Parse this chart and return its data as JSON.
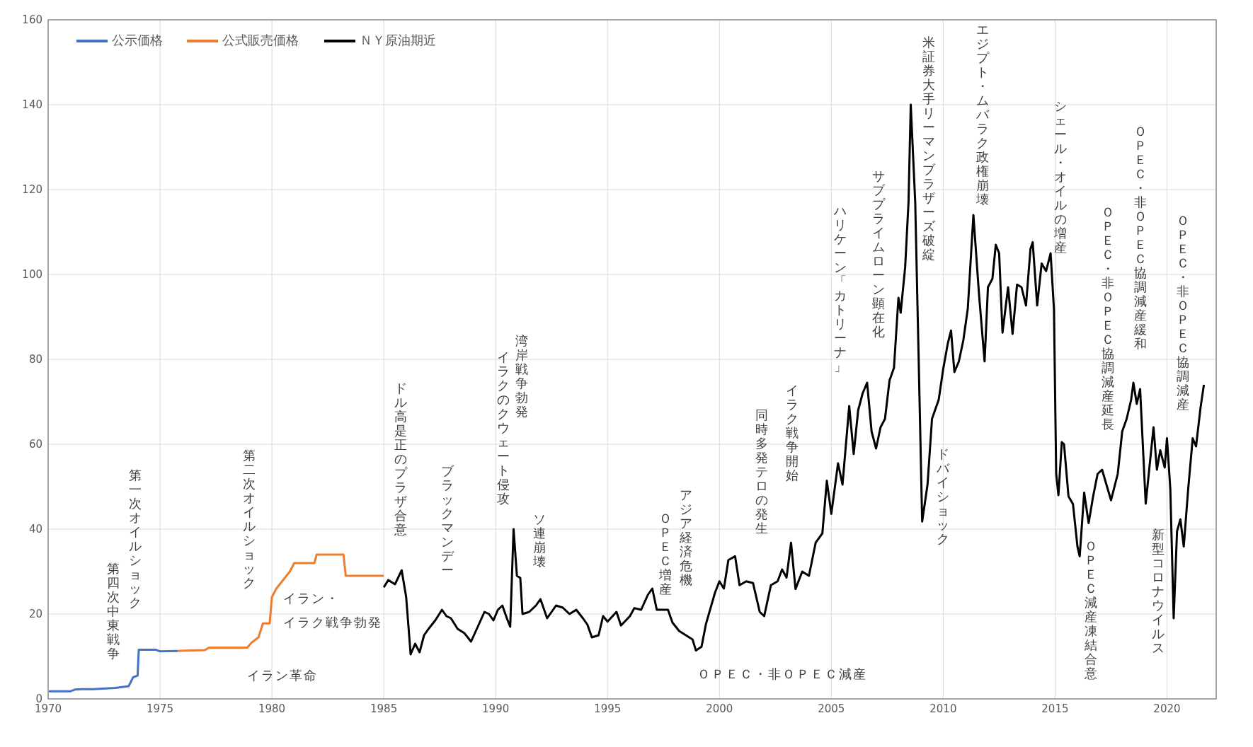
{
  "chart_data": {
    "type": "line",
    "xlim": [
      1970,
      2022.2
    ],
    "xticks": [
      1970,
      1975,
      1980,
      1985,
      1990,
      1995,
      2000,
      2005,
      2010,
      2015,
      2020
    ],
    "ylim": [
      0,
      160
    ],
    "yticks": [
      0,
      20,
      40,
      60,
      80,
      100,
      120,
      140,
      160
    ],
    "grid": true,
    "legend": "top left",
    "marker": "none",
    "line_style": "solid",
    "series": [
      {
        "name": "公示価格",
        "color": "#4472c4",
        "x": [
          1970,
          1971,
          1971.2,
          1971.5,
          1972,
          1973,
          1973.6,
          1973.8,
          1974,
          1974.05,
          1974.8,
          1975,
          1975.8
        ],
        "values": [
          1.8,
          1.8,
          2.2,
          2.3,
          2.3,
          2.6,
          3,
          5.1,
          5.5,
          11.6,
          11.6,
          11.2,
          11.3
        ]
      },
      {
        "name": "公式販売価格",
        "color": "#ed7d31",
        "x": [
          1975.8,
          1977,
          1977.2,
          1978.9,
          1979.1,
          1979.4,
          1979.6,
          1979.9,
          1980,
          1980.2,
          1980.5,
          1980.8,
          1981,
          1981.9,
          1982,
          1983.2,
          1983.3,
          1985
        ],
        "values": [
          11.3,
          11.5,
          12.1,
          12.1,
          13.3,
          14.5,
          17.8,
          17.8,
          24,
          26,
          28,
          30,
          32,
          32,
          34,
          34,
          29,
          29
        ]
      },
      {
        "name": "ＮＹ原油期近",
        "color": "#000000",
        "x": [
          1985,
          1985.2,
          1985.5,
          1985.8,
          1986,
          1986.2,
          1986.4,
          1986.6,
          1986.8,
          1987,
          1987.3,
          1987.6,
          1987.8,
          1988,
          1988.3,
          1988.6,
          1988.9,
          1989.2,
          1989.5,
          1989.7,
          1989.9,
          1990.1,
          1990.3,
          1990.5,
          1990.65,
          1990.8,
          1990.95,
          1991.1,
          1991.2,
          1991.5,
          1991.8,
          1992,
          1992.3,
          1992.7,
          1993,
          1993.3,
          1993.6,
          1993.9,
          1994.1,
          1994.3,
          1994.6,
          1994.8,
          1995,
          1995.4,
          1995.6,
          1996,
          1996.2,
          1996.5,
          1996.8,
          1997,
          1997.2,
          1997.7,
          1997.9,
          1998.2,
          1998.5,
          1998.8,
          1998.95,
          1999.2,
          1999.4,
          1999.8,
          2000,
          2000.2,
          2000.4,
          2000.7,
          2000.9,
          2001.2,
          2001.5,
          2001.8,
          2002,
          2002.3,
          2002.6,
          2002.8,
          2003,
          2003.2,
          2003.4,
          2003.7,
          2004,
          2004.3,
          2004.6,
          2004.8,
          2005,
          2005.3,
          2005.5,
          2005.8,
          2006,
          2006.2,
          2006.4,
          2006.6,
          2006.8,
          2007,
          2007.2,
          2007.4,
          2007.6,
          2007.8,
          2008,
          2008.1,
          2008.3,
          2008.45,
          2008.55,
          2008.75,
          2008.9,
          2009.06,
          2009.3,
          2009.5,
          2009.8,
          2010,
          2010.2,
          2010.35,
          2010.5,
          2010.7,
          2010.9,
          2011.1,
          2011.35,
          2011.6,
          2011.85,
          2012,
          2012.2,
          2012.35,
          2012.5,
          2012.65,
          2012.9,
          2013.1,
          2013.3,
          2013.5,
          2013.7,
          2013.9,
          2014,
          2014.2,
          2014.4,
          2014.6,
          2014.8,
          2014.95,
          2015.05,
          2015.15,
          2015.3,
          2015.4,
          2015.6,
          2015.8,
          2016,
          2016.1,
          2016.3,
          2016.5,
          2016.7,
          2016.9,
          2017.1,
          2017.35,
          2017.5,
          2017.8,
          2018,
          2018.2,
          2018.4,
          2018.5,
          2018.65,
          2018.8,
          2018.95,
          2019.05,
          2019.4,
          2019.55,
          2019.7,
          2019.9,
          2020,
          2020.15,
          2020.3,
          2020.45,
          2020.6,
          2020.75,
          2020.95,
          2021.15,
          2021.3,
          2021.5,
          2021.65
        ],
        "values": [
          26.3,
          28,
          27,
          30.3,
          24,
          10.5,
          13,
          11,
          15,
          16.5,
          18.5,
          21,
          19.5,
          19,
          16.5,
          15.5,
          13.5,
          17,
          20.5,
          20,
          18.5,
          21,
          22,
          19,
          17,
          40,
          29,
          28.5,
          20,
          20.5,
          22,
          23.5,
          19,
          22,
          21.5,
          20,
          21,
          19,
          17.5,
          14.5,
          15,
          19.5,
          18.2,
          20.5,
          17.3,
          19.5,
          21.4,
          21,
          24.5,
          26,
          21,
          21,
          18,
          16,
          15,
          14,
          11.4,
          12.3,
          17.7,
          25,
          27.7,
          26,
          32.7,
          33.6,
          26.8,
          27.7,
          27.3,
          20.5,
          19.5,
          26.8,
          27.7,
          30.5,
          28.6,
          36.8,
          25.9,
          30,
          29,
          36.8,
          39,
          51.4,
          43.6,
          55.5,
          50.5,
          69,
          57.7,
          68,
          72,
          74.5,
          63,
          59,
          64,
          66,
          75,
          78,
          94.5,
          91,
          101.7,
          117,
          140,
          117,
          81,
          41.8,
          50.5,
          66,
          70.5,
          77.7,
          83.6,
          86.8,
          77,
          79.5,
          84.5,
          92,
          114,
          95.4,
          79.5,
          97,
          99,
          107,
          105,
          86.3,
          97,
          86,
          97.6,
          97,
          92.7,
          106,
          107.6,
          92.7,
          102.6,
          100.8,
          105,
          91.8,
          53,
          48,
          60.5,
          60,
          47.7,
          45.9,
          35.9,
          33.6,
          48.6,
          41.4,
          47.7,
          53,
          54,
          49.5,
          46.8,
          53,
          63,
          66,
          70.5,
          74.5,
          69.5,
          73,
          56.8,
          46,
          64,
          54,
          58.6,
          54.5,
          61.4,
          49.5,
          19,
          39.5,
          42.3,
          35.9,
          49.5,
          61.4,
          59.5,
          68.6,
          74
        ]
      }
    ],
    "annotations": [
      "第四次中東戦争",
      "第一次オイルショック",
      "第二次オイルショック",
      "イラン・イラク戦争勃発",
      "イラン革命",
      "ドル高是正のプラザ合意",
      "ブラックマンデー",
      "イラクのクウェート侵攻",
      "湾岸戦争勃発",
      "ソ連崩壊",
      "ＯＰＥＣ増産",
      "アジア経済危機",
      "ＯＰＥＣ・非ＯＰＥＣ減産",
      "同時多発テロの発生",
      "イラク戦争開始",
      "ハリケーン「カトリーナ」",
      "サブプライムローン顕在化",
      "米証券大手リーマンブラザーズ破綻",
      "ドバイショック",
      "エジプト・ムバラク政権崩壊",
      "シェール・オイルの増産",
      "ＯＰＥＣ・非ＯＰＥＣ協調減産延長",
      "ＯＰＥＣ・非ＯＰＥＣ協調減産緩和",
      "ＯＰＥＣ・非ＯＰＥＣ協調減産",
      "ＯＰＥＣ減産凍結合意",
      "新型コロナウイルス"
    ]
  }
}
